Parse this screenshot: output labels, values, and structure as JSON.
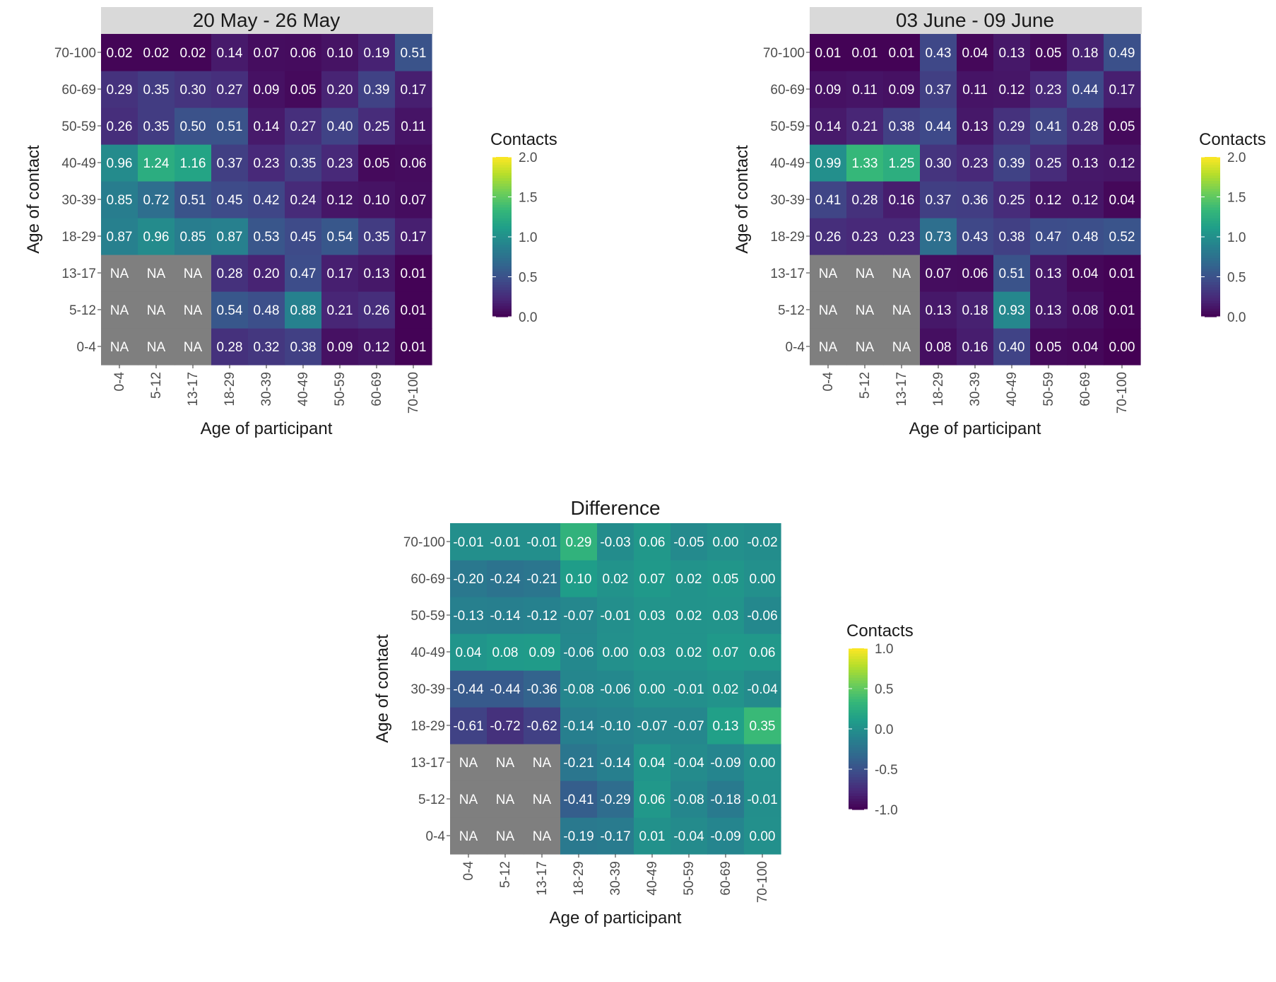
{
  "chart_data": [
    {
      "type": "heatmap",
      "title": "20 May - 26 May",
      "xlabel": "Age of participant",
      "ylabel": "Age of contact",
      "x_categories": [
        "0-4",
        "5-12",
        "13-17",
        "18-29",
        "30-39",
        "40-49",
        "50-59",
        "60-69",
        "70-100"
      ],
      "y_categories": [
        "0-4",
        "5-12",
        "13-17",
        "18-29",
        "30-39",
        "40-49",
        "50-59",
        "60-69",
        "70-100"
      ],
      "legend": {
        "title": "Contacts",
        "range": [
          0,
          2
        ],
        "ticks": [
          "0.0",
          "0.5",
          "1.0",
          "1.5",
          "2.0"
        ]
      },
      "values": [
        [
          null,
          null,
          null,
          "0.28",
          "0.32",
          "0.38",
          "0.09",
          "0.12",
          "0.01"
        ],
        [
          null,
          null,
          null,
          "0.54",
          "0.48",
          "0.88",
          "0.21",
          "0.26",
          "0.01"
        ],
        [
          null,
          null,
          null,
          "0.28",
          "0.20",
          "0.47",
          "0.17",
          "0.13",
          "0.01"
        ],
        [
          "0.87",
          "0.96",
          "0.85",
          "0.87",
          "0.53",
          "0.45",
          "0.54",
          "0.35",
          "0.17"
        ],
        [
          "0.85",
          "0.72",
          "0.51",
          "0.45",
          "0.42",
          "0.24",
          "0.12",
          "0.10",
          "0.07"
        ],
        [
          "0.96",
          "1.24",
          "1.16",
          "0.37",
          "0.23",
          "0.35",
          "0.23",
          "0.05",
          "0.06"
        ],
        [
          "0.26",
          "0.35",
          "0.50",
          "0.51",
          "0.14",
          "0.27",
          "0.40",
          "0.25",
          "0.11"
        ],
        [
          "0.29",
          "0.35",
          "0.30",
          "0.27",
          "0.09",
          "0.05",
          "0.20",
          "0.39",
          "0.17"
        ],
        [
          "0.02",
          "0.02",
          "0.02",
          "0.14",
          "0.07",
          "0.06",
          "0.10",
          "0.19",
          "0.51"
        ]
      ],
      "na_label": "NA"
    },
    {
      "type": "heatmap",
      "title": "03 June - 09 June",
      "xlabel": "Age of participant",
      "ylabel": "Age of contact",
      "x_categories": [
        "0-4",
        "5-12",
        "13-17",
        "18-29",
        "30-39",
        "40-49",
        "50-59",
        "60-69",
        "70-100"
      ],
      "y_categories": [
        "0-4",
        "5-12",
        "13-17",
        "18-29",
        "30-39",
        "40-49",
        "50-59",
        "60-69",
        "70-100"
      ],
      "legend": {
        "title": "Contacts",
        "range": [
          0,
          2
        ],
        "ticks": [
          "0.0",
          "0.5",
          "1.0",
          "1.5",
          "2.0"
        ]
      },
      "values": [
        [
          null,
          null,
          null,
          "0.08",
          "0.16",
          "0.40",
          "0.05",
          "0.04",
          "0.00"
        ],
        [
          null,
          null,
          null,
          "0.13",
          "0.18",
          "0.93",
          "0.13",
          "0.08",
          "0.01"
        ],
        [
          null,
          null,
          null,
          "0.07",
          "0.06",
          "0.51",
          "0.13",
          "0.04",
          "0.01"
        ],
        [
          "0.26",
          "0.23",
          "0.23",
          "0.73",
          "0.43",
          "0.38",
          "0.47",
          "0.48",
          "0.52"
        ],
        [
          "0.41",
          "0.28",
          "0.16",
          "0.37",
          "0.36",
          "0.25",
          "0.12",
          "0.12",
          "0.04"
        ],
        [
          "0.99",
          "1.33",
          "1.25",
          "0.30",
          "0.23",
          "0.39",
          "0.25",
          "0.13",
          "0.12"
        ],
        [
          "0.14",
          "0.21",
          "0.38",
          "0.44",
          "0.13",
          "0.29",
          "0.41",
          "0.28",
          "0.05"
        ],
        [
          "0.09",
          "0.11",
          "0.09",
          "0.37",
          "0.11",
          "0.12",
          "0.23",
          "0.44",
          "0.17"
        ],
        [
          "0.01",
          "0.01",
          "0.01",
          "0.43",
          "0.04",
          "0.13",
          "0.05",
          "0.18",
          "0.49"
        ]
      ],
      "na_label": "NA"
    },
    {
      "type": "heatmap",
      "title": "Difference",
      "xlabel": "Age of participant",
      "ylabel": "Age of contact",
      "x_categories": [
        "0-4",
        "5-12",
        "13-17",
        "18-29",
        "30-39",
        "40-49",
        "50-59",
        "60-69",
        "70-100"
      ],
      "y_categories": [
        "0-4",
        "5-12",
        "13-17",
        "18-29",
        "30-39",
        "40-49",
        "50-59",
        "60-69",
        "70-100"
      ],
      "legend": {
        "title": "Contacts",
        "range": [
          -1,
          1
        ],
        "ticks": [
          "-1.0",
          "-0.5",
          "0.0",
          "0.5",
          "1.0"
        ]
      },
      "values": [
        [
          null,
          null,
          null,
          "-0.19",
          "-0.17",
          "0.01",
          "-0.04",
          "-0.09",
          "0.00"
        ],
        [
          null,
          null,
          null,
          "-0.41",
          "-0.29",
          "0.06",
          "-0.08",
          "-0.18",
          "-0.01"
        ],
        [
          null,
          null,
          null,
          "-0.21",
          "-0.14",
          "0.04",
          "-0.04",
          "-0.09",
          "0.00"
        ],
        [
          "-0.61",
          "-0.72",
          "-0.62",
          "-0.14",
          "-0.10",
          "-0.07",
          "-0.07",
          "0.13",
          "0.35"
        ],
        [
          "-0.44",
          "-0.44",
          "-0.36",
          "-0.08",
          "-0.06",
          "0.00",
          "-0.01",
          "0.02",
          "-0.04"
        ],
        [
          "0.04",
          "0.08",
          "0.09",
          "-0.06",
          "0.00",
          "0.03",
          "0.02",
          "0.07",
          "0.06"
        ],
        [
          "-0.13",
          "-0.14",
          "-0.12",
          "-0.07",
          "-0.01",
          "0.03",
          "0.02",
          "0.03",
          "-0.06"
        ],
        [
          "-0.20",
          "-0.24",
          "-0.21",
          "0.10",
          "0.02",
          "0.07",
          "0.02",
          "0.05",
          "0.00"
        ],
        [
          "-0.01",
          "-0.01",
          "-0.01",
          "0.29",
          "-0.03",
          "0.06",
          "-0.05",
          "0.00",
          "-0.02"
        ]
      ],
      "na_label": "NA"
    }
  ],
  "colors": {
    "na_fill": "#7f7f7f",
    "strip_fill": "#d9d9d9",
    "viridis": [
      "#440154",
      "#482878",
      "#3e4a89",
      "#31688e",
      "#26828e",
      "#1f9e89",
      "#35b779",
      "#6ece58",
      "#b5de2b",
      "#fde725"
    ]
  }
}
